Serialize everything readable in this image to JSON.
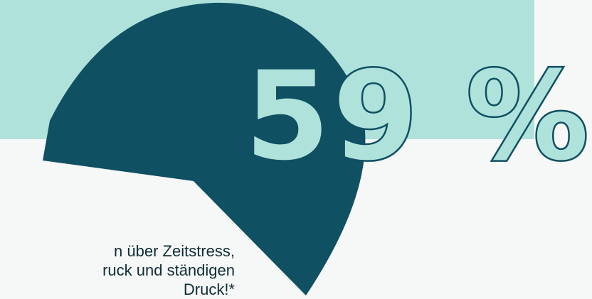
{
  "colors": {
    "top_band": "#b0e2dc",
    "pie": "#0f5062",
    "background": "#f6f8f8",
    "text": "#0f2d35"
  },
  "headline": {
    "value": "59 %"
  },
  "caption": {
    "lines": [
      "n über Zeitstress,",
      "ruck und ständigen",
      "Druck!*"
    ]
  }
}
